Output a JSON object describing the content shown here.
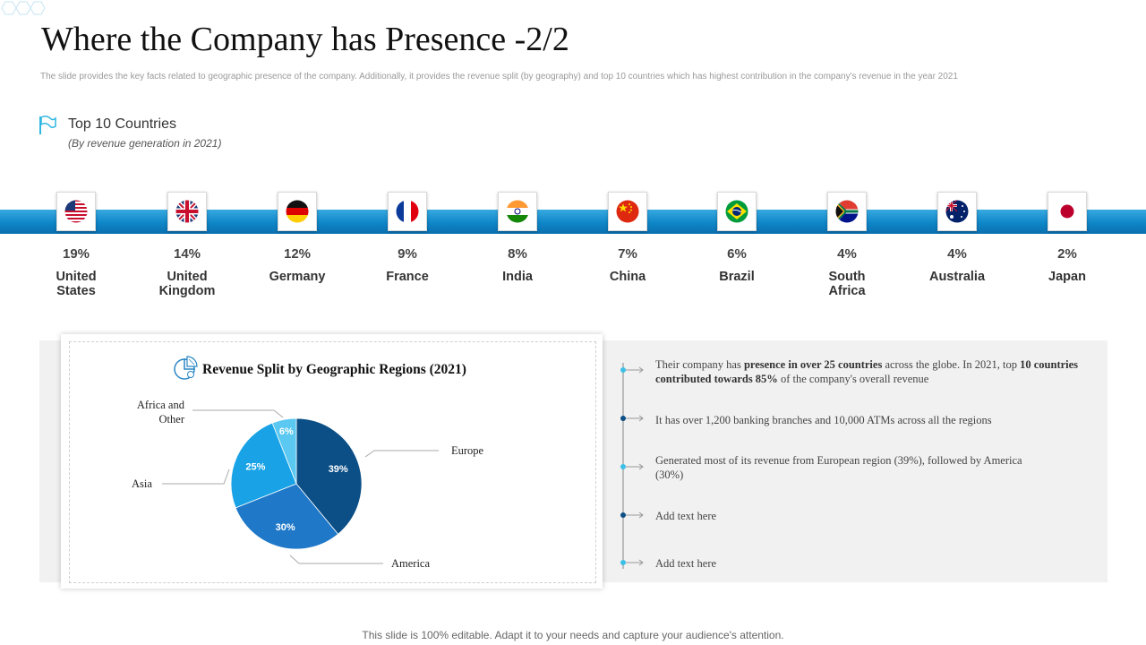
{
  "header": {
    "title": "Where the Company has Presence -2/2",
    "subtitle": "The slide provides the key facts related to geographic presence of the company. Additionally, it provides the revenue split (by geography) and top 10 countries which has highest contribution in the company's revenue in the year 2021"
  },
  "countries_section": {
    "title": "Top 10 Countries",
    "subtitle": "(By revenue generation in 2021)",
    "icon": "flag-icon",
    "items": [
      {
        "pct": "19%",
        "name_1": "United",
        "name_2": "States",
        "flag": "us-flag-icon"
      },
      {
        "pct": "14%",
        "name_1": "United",
        "name_2": "Kingdom",
        "flag": "uk-flag-icon"
      },
      {
        "pct": "12%",
        "name_1": "Germany",
        "name_2": "",
        "flag": "germany-flag-icon"
      },
      {
        "pct": "9%",
        "name_1": "France",
        "name_2": "",
        "flag": "france-flag-icon"
      },
      {
        "pct": "8%",
        "name_1": "India",
        "name_2": "",
        "flag": "india-flag-icon"
      },
      {
        "pct": "7%",
        "name_1": "China",
        "name_2": "",
        "flag": "china-flag-icon"
      },
      {
        "pct": "6%",
        "name_1": "Brazil",
        "name_2": "",
        "flag": "brazil-flag-icon"
      },
      {
        "pct": "4%",
        "name_1": "South",
        "name_2": "Africa",
        "flag": "south-africa-flag-icon"
      },
      {
        "pct": "4%",
        "name_1": "Australia",
        "name_2": "",
        "flag": "australia-flag-icon"
      },
      {
        "pct": "2%",
        "name_1": "Japan",
        "name_2": "",
        "flag": "japan-flag-icon"
      }
    ]
  },
  "chart_data": {
    "type": "pie",
    "title": "Revenue Split by Geographic Regions (2021)",
    "categories": [
      "Europe",
      "America",
      "Asia",
      "Africa and Other"
    ],
    "values": [
      39,
      30,
      25,
      6
    ],
    "data_labels": [
      "39%",
      "30%",
      "25%",
      "6%"
    ],
    "colors": [
      "#0b4f86",
      "#1f78c8",
      "#19a3e6",
      "#5ac8f0"
    ],
    "legend": "callout-labels"
  },
  "chart_text": {
    "africa_1": "Africa and",
    "africa_2": "Other",
    "asia": "Asia",
    "europe": "Europe",
    "america": "America"
  },
  "facts": {
    "f1_a": "Their company has ",
    "f1_b": "presence in over 25 countries",
    "f1_c": " across the globe. In 2021, top ",
    "f1_d": "10 countries contributed towards 85%",
    "f1_e": " of the company's overall revenue",
    "f2": "It has over 1,200 banking branches and 10,000 ATMs across all the regions",
    "f3": "Generated most of its revenue from European region (39%), followed by America (30%)",
    "f4": "Add text here",
    "f5": "Add text here"
  },
  "footer": "This slide is 100% editable. Adapt it to your needs and capture your audience's attention.",
  "colors": {
    "accent": "#1a8fd3",
    "dark_blue": "#0b4f86",
    "light_blue": "#3cc0e6"
  }
}
